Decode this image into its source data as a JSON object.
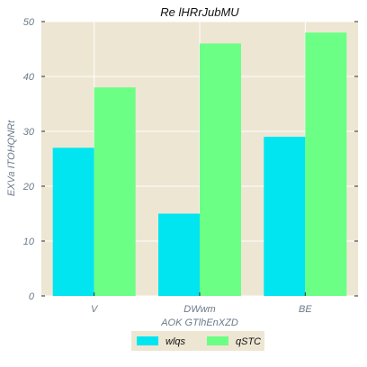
{
  "chart_data": {
    "type": "bar",
    "title": "Re lHRrJubMU",
    "xlabel": "AOK GTlhEnXZD",
    "ylabel": "EXVa ITOHQNRt",
    "categories": [
      "V",
      "DWwm",
      "BE"
    ],
    "series": [
      {
        "name": "wlqs",
        "values": [
          27,
          15,
          29
        ],
        "color": "#00e5f0"
      },
      {
        "name": "qSTC",
        "values": [
          38,
          46,
          48
        ],
        "color": "#6bff85"
      }
    ],
    "ylim": [
      0,
      50
    ],
    "yticks": [
      0,
      10,
      20,
      30,
      40,
      50
    ],
    "grid": true,
    "legend_position": "bottom-center",
    "plot_background": "#ede6d3",
    "grid_color": "#ffffff"
  }
}
